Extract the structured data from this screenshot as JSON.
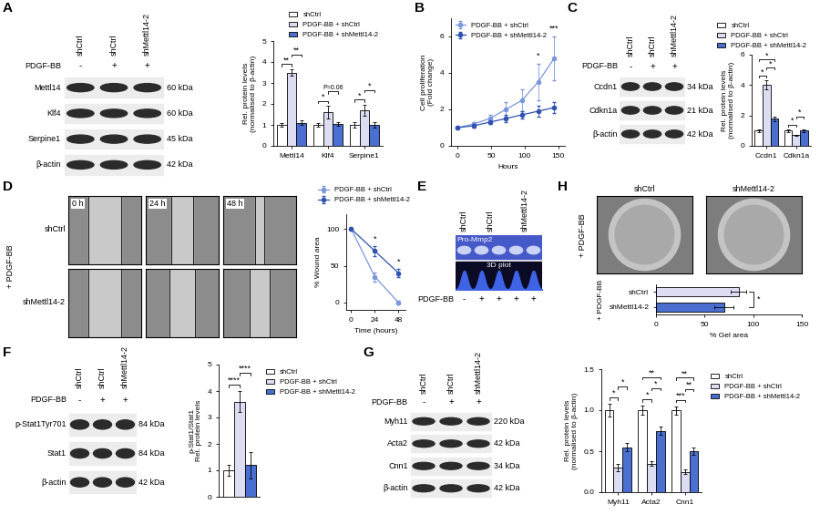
{
  "panel_labels": [
    "A",
    "B",
    "C",
    "D",
    "E",
    "F",
    "G",
    "H"
  ],
  "blots": [
    {
      "panel": "A",
      "lanes": [
        "shCtrl",
        "shCtrl",
        "shMettl14-2"
      ],
      "treatment_label": "PDGF-BB",
      "treatment": [
        "-",
        "+",
        "+"
      ],
      "rows": [
        {
          "name": "Mettl14",
          "size": "60 kDa"
        },
        {
          "name": "Klf4",
          "size": "60 kDa"
        },
        {
          "name": "Serpine1",
          "size": "45 kDa"
        },
        {
          "name": "β-actin",
          "size": "42 kDa"
        }
      ]
    },
    {
      "panel": "C",
      "lanes": [
        "shCtrl",
        "shCtrl",
        "shMettl14-2"
      ],
      "treatment_label": "PDGF-BB",
      "treatment": [
        "-",
        "+",
        "+"
      ],
      "rows": [
        {
          "name": "Ccdn1",
          "size": "34 kDa"
        },
        {
          "name": "Cdkn1a",
          "size": "21 kDa"
        },
        {
          "name": "β-actin",
          "size": "42 kDa"
        }
      ]
    },
    {
      "panel": "F",
      "lanes": [
        "shCtrl",
        "shCtrl",
        "shMettl14-2"
      ],
      "treatment_label": "PDGF-BB",
      "treatment": [
        "-",
        "+",
        "+"
      ],
      "rows": [
        {
          "name": "p-Stat1Tyr701",
          "size": "84 kDa"
        },
        {
          "name": "Stat1",
          "size": "84 kDa"
        },
        {
          "name": "β-actin",
          "size": "42 kDa"
        }
      ]
    },
    {
      "panel": "G",
      "lanes": [
        "shCtrl",
        "shCtrl",
        "shMettl14-2"
      ],
      "treatment_label": "PDGF-BB",
      "treatment": [
        "-",
        "+",
        "+"
      ],
      "rows": [
        {
          "name": "Myh11",
          "size": "220 kDa"
        },
        {
          "name": "Acta2",
          "size": "42 kDa"
        },
        {
          "name": "Cnn1",
          "size": "34 kDa"
        },
        {
          "name": "β-actin",
          "size": "42 kDa"
        }
      ]
    }
  ],
  "zymogram": {
    "columns": [
      {
        "label": "shCtrl",
        "lanes": 1
      },
      {
        "label": "shCtrl",
        "lanes": 2
      },
      {
        "label": "shMettl14-2",
        "lanes": 2
      }
    ],
    "band_label": "Pro-Mmp2",
    "plot_label": "3D plot",
    "treatment_label": "PDGF-BB",
    "treatment": [
      "-",
      "+",
      "+",
      "+",
      "+"
    ]
  },
  "wound_images": {
    "side_label": "+ PDGF-BB",
    "rows": [
      "shCtrl",
      "shMettl14-2"
    ],
    "times": [
      "0 h",
      "24 h",
      "48 h"
    ]
  },
  "gel_images": {
    "side_label": "+ PDGF-BB",
    "columns": [
      "shCtrl",
      "shMettl14-2"
    ]
  },
  "chart_data": [
    {
      "type": "bar",
      "y_label": "Rel. protein levels\n(normalised to β-actin)",
      "categories": [
        "Mettl14",
        "Klf4",
        "Serpine1"
      ],
      "series": [
        {
          "name": "shCtrl",
          "color": "#ffffff",
          "values": [
            1.0,
            1.0,
            1.0
          ],
          "errors": [
            0.08,
            0.1,
            0.12
          ]
        },
        {
          "name": "PDGF-BB + shCtrl",
          "color": "#dcdcf2",
          "values": [
            3.5,
            1.6,
            1.7
          ],
          "errors": [
            0.15,
            0.3,
            0.25
          ]
        },
        {
          "name": "PDGF-BB + shMettl14-2",
          "color": "#4a6fd0",
          "values": [
            1.1,
            1.05,
            1.0
          ],
          "errors": [
            0.1,
            0.1,
            0.12
          ]
        }
      ],
      "ylim": [
        0,
        5
      ],
      "yticks": [
        0,
        1,
        2,
        3,
        4,
        5
      ],
      "legend": "upper right",
      "annotations": [
        {
          "text": "**",
          "category": "Mettl14",
          "between": [
            0,
            1
          ]
        },
        {
          "text": "**",
          "category": "Mettl14",
          "between": [
            1,
            2
          ]
        },
        {
          "text": "*",
          "category": "Klf4",
          "between": [
            0,
            1
          ]
        },
        {
          "text": "P=0.06",
          "category": "Klf4",
          "between": [
            1,
            2
          ]
        },
        {
          "text": "*",
          "category": "Serpine1",
          "between": [
            0,
            1
          ]
        },
        {
          "text": "*",
          "category": "Serpine1",
          "between": [
            1,
            2
          ]
        }
      ]
    },
    {
      "type": "line",
      "x_label": "Hours",
      "y_label": "Cell proliferation\n(Fold change)",
      "x": [
        0,
        24,
        48,
        72,
        96,
        120,
        144
      ],
      "series": [
        {
          "name": "PDGF-BB + shCtrl",
          "color": "#7b96dc",
          "marker": "o",
          "line_style": "solid",
          "values": [
            1.0,
            1.2,
            1.5,
            2.0,
            2.5,
            3.5,
            4.8
          ],
          "errors": [
            0.05,
            0.1,
            0.2,
            0.4,
            0.6,
            1.0,
            1.2
          ]
        },
        {
          "name": "PDGF-BB + shMettl14-2",
          "color": "#2f52b0",
          "marker": "o",
          "line_style": "solid",
          "values": [
            1.0,
            1.1,
            1.3,
            1.5,
            1.7,
            1.9,
            2.1
          ],
          "errors": [
            0.05,
            0.1,
            0.1,
            0.2,
            0.2,
            0.3,
            0.3
          ]
        }
      ],
      "xlim": [
        -10,
        160
      ],
      "xticks": [
        0,
        50,
        100,
        150
      ],
      "ylim": [
        0,
        7
      ],
      "yticks": [
        0,
        2,
        4,
        6
      ],
      "legend": "upper left",
      "annotations": [
        {
          "text": "*",
          "x": 120
        },
        {
          "text": "***",
          "x": 144
        }
      ]
    },
    {
      "type": "bar",
      "y_label": "Rel. protein levels\n(normalised to β-actin)",
      "categories": [
        "Ccdn1",
        "Cdkn1a"
      ],
      "series": [
        {
          "name": "shCtrl",
          "color": "#ffffff",
          "values": [
            1.0,
            1.0
          ],
          "errors": [
            0.1,
            0.08
          ]
        },
        {
          "name": "PDGF-BB + shCtrl",
          "color": "#dcdcf2",
          "values": [
            4.0,
            0.7
          ],
          "errors": [
            0.3,
            0.05
          ]
        },
        {
          "name": "PDGF-BB + shMettl14-2",
          "color": "#4a6fd0",
          "values": [
            1.8,
            1.0
          ],
          "errors": [
            0.15,
            0.08
          ]
        }
      ],
      "ylim": [
        0,
        6
      ],
      "yticks": [
        0,
        2,
        4,
        6
      ],
      "legend": "upper right",
      "annotations": [
        {
          "text": "*",
          "category": "Ccdn1",
          "between": [
            0,
            1
          ]
        },
        {
          "text": "*",
          "category": "Ccdn1",
          "between": [
            1,
            2
          ]
        },
        {
          "text": "*",
          "category": "Ccdn1",
          "between": [
            0,
            2
          ]
        },
        {
          "text": "*",
          "category": "Cdkn1a",
          "between": [
            0,
            1
          ]
        },
        {
          "text": "*",
          "category": "Cdkn1a",
          "between": [
            1,
            2
          ]
        }
      ]
    },
    {
      "type": "line",
      "x_label": "Time (hours)",
      "y_label": "% Wound area",
      "x": [
        0,
        24,
        48
      ],
      "series": [
        {
          "name": "PDGF-BB + shCtrl",
          "color": "#7b96dc",
          "marker": "o",
          "line_style": "solid",
          "values": [
            100,
            35,
            0
          ],
          "errors": [
            0,
            6,
            3
          ]
        },
        {
          "name": "PDGF-BB + shMettl14-2",
          "color": "#2f52b0",
          "marker": "o",
          "line_style": "solid",
          "values": [
            100,
            70,
            40
          ],
          "errors": [
            0,
            7,
            6
          ]
        }
      ],
      "xlim": [
        -5,
        55
      ],
      "xticks": [
        0,
        24,
        48
      ],
      "ylim": [
        -10,
        120
      ],
      "yticks": [
        0,
        50,
        100
      ],
      "legend": "upper left",
      "annotations": [
        {
          "text": "*",
          "x": 24
        },
        {
          "text": "*",
          "x": 48
        }
      ]
    },
    {
      "type": "bar",
      "y_label": "p-Stat1/Stat1\nRel. protein levels",
      "categories": [
        null
      ],
      "series": [
        {
          "name": "shCtrl",
          "color": "#ffffff",
          "values": [
            1.0
          ],
          "errors": [
            0.2
          ]
        },
        {
          "name": "PDGF-BB + shCtrl",
          "color": "#dcdcf2",
          "values": [
            3.6
          ],
          "errors": [
            0.4
          ]
        },
        {
          "name": "PDGF-BB + shMettl14-2",
          "color": "#4a6fd0",
          "values": [
            1.2
          ],
          "errors": [
            0.5
          ]
        }
      ],
      "ylim": [
        0,
        5
      ],
      "yticks": [
        0,
        1,
        2,
        3,
        4,
        5
      ],
      "legend": "upper left",
      "annotations": [
        {
          "text": "****",
          "category": null,
          "between": [
            0,
            1
          ]
        },
        {
          "text": "****",
          "category": null,
          "between": [
            1,
            2
          ]
        }
      ]
    },
    {
      "type": "bar",
      "y_label": "Rel. protein levels\n(normalised to β-actin)",
      "categories": [
        "Myh11",
        "Acta2",
        "Cnn1"
      ],
      "series": [
        {
          "name": "shCtrl",
          "color": "#ffffff",
          "values": [
            1.0,
            1.0,
            1.0
          ],
          "errors": [
            0.08,
            0.06,
            0.05
          ]
        },
        {
          "name": "PDGF-BB + shCtrl",
          "color": "#dcdcf2",
          "values": [
            0.3,
            0.35,
            0.25
          ],
          "errors": [
            0.04,
            0.03,
            0.03
          ]
        },
        {
          "name": "PDGF-BB + shMettl14-2",
          "color": "#4a6fd0",
          "values": [
            0.55,
            0.75,
            0.5
          ],
          "errors": [
            0.05,
            0.05,
            0.04
          ]
        }
      ],
      "ylim": [
        0,
        1.5
      ],
      "yticks": [
        {
          "value": 0,
          "label": "0.0"
        },
        {
          "value": 0.5,
          "label": "0.5"
        },
        {
          "value": 1.0,
          "label": "1.0"
        },
        {
          "value": 1.5,
          "label": "1.5"
        }
      ],
      "legend": "upper left",
      "annotations": [
        {
          "text": "*",
          "category": "Myh11",
          "between": [
            0,
            1
          ]
        },
        {
          "text": "*",
          "category": "Myh11",
          "between": [
            1,
            2
          ]
        },
        {
          "text": "*",
          "category": "Acta2",
          "between": [
            0,
            1
          ]
        },
        {
          "text": "*",
          "category": "Acta2",
          "between": [
            1,
            2
          ]
        },
        {
          "text": "**",
          "category": "Acta2",
          "between": [
            0,
            2
          ]
        },
        {
          "text": "***",
          "category": "Cnn1",
          "between": [
            0,
            1
          ]
        },
        {
          "text": "**",
          "category": "Cnn1",
          "between": [
            1,
            2
          ]
        },
        {
          "text": "**",
          "category": "Cnn1",
          "between": [
            0,
            2
          ]
        }
      ]
    },
    {
      "type": "bar",
      "orientation": "horizontal",
      "x_label": "% Gel area",
      "y_label": "+ PDGF-BB",
      "categories": [
        "shCtrl",
        "shMettl14-2"
      ],
      "values": [
        85,
        70
      ],
      "errors": [
        8,
        10
      ],
      "colors": [
        "#dcdcf2",
        "#4a6fd0"
      ],
      "xlim": [
        0,
        150
      ],
      "xticks": [
        0,
        50,
        100,
        150
      ],
      "annotations": [
        {
          "text": "*",
          "between": [
            0,
            1
          ]
        }
      ]
    }
  ]
}
